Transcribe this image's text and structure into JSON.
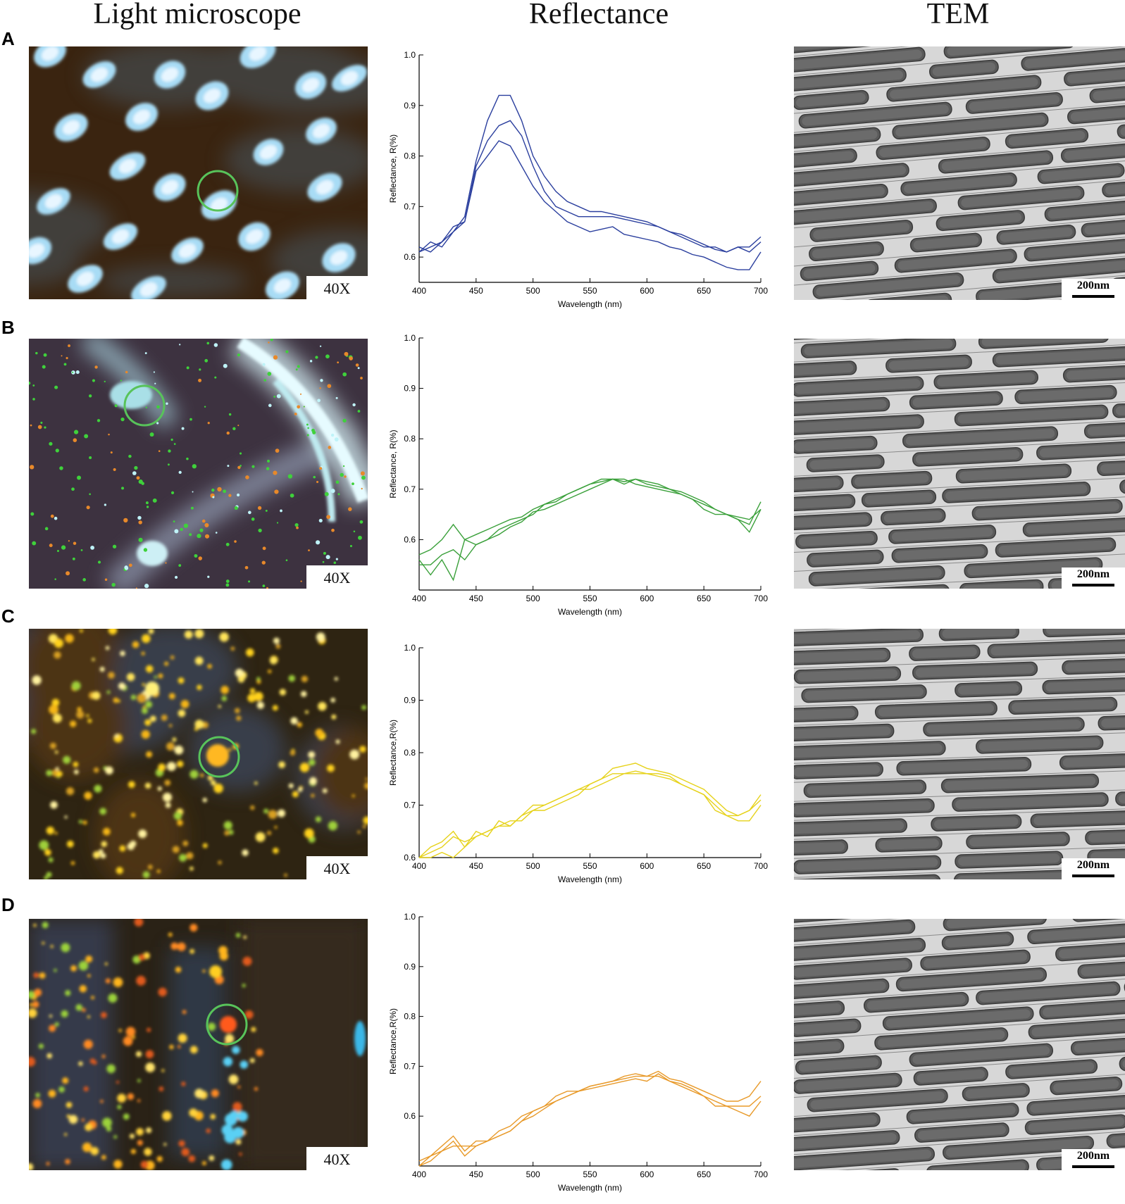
{
  "headers": {
    "light": "Light microscope",
    "reflectance": "Reflectance",
    "tem": "TEM"
  },
  "rows": [
    {
      "letter": "A",
      "magnification": "40X",
      "scale_label": "200nm",
      "micro_palette": "blue-spots",
      "chart": {
        "ylabel": "Reflectance, R(%)",
        "xlabel": "Wavelength (nm)",
        "ymin": 0.55
      }
    },
    {
      "letter": "B",
      "magnification": "40X",
      "scale_label": "200nm",
      "micro_palette": "green-cyan",
      "chart": {
        "ylabel": "Reflectance, R(%)",
        "xlabel": "Wavelength (nm)",
        "ymin": 0.5
      }
    },
    {
      "letter": "C",
      "magnification": "40X",
      "scale_label": "200nm",
      "micro_palette": "yellow",
      "chart": {
        "ylabel": "Reflectance,R(%)",
        "xlabel": "Wavelength (nm)",
        "ymin": 0.6
      }
    },
    {
      "letter": "D",
      "magnification": "40X",
      "scale_label": "200nm",
      "micro_palette": "orange",
      "chart": {
        "ylabel": "Reflectance,R(%)",
        "xlabel": "Wavelength (nm)",
        "ymin": 0.5
      }
    }
  ],
  "chart_data": [
    {
      "type": "line",
      "xlim": [
        400,
        700
      ],
      "ylim": [
        0.55,
        1.0
      ],
      "xticks": [
        "400",
        "450",
        "500",
        "550",
        "600",
        "650",
        "700"
      ],
      "yticks": [
        "0.6",
        "0.7",
        "0.8",
        "0.9",
        "1.0"
      ],
      "color": "#2b3f9e",
      "x": [
        400,
        410,
        420,
        430,
        440,
        450,
        460,
        470,
        480,
        490,
        500,
        510,
        520,
        530,
        540,
        550,
        560,
        570,
        580,
        590,
        600,
        610,
        620,
        630,
        640,
        650,
        660,
        670,
        680,
        690,
        700
      ],
      "series": [
        {
          "values": [
            0.61,
            0.63,
            0.62,
            0.65,
            0.68,
            0.79,
            0.87,
            0.92,
            0.92,
            0.87,
            0.8,
            0.76,
            0.73,
            0.71,
            0.7,
            0.69,
            0.69,
            0.685,
            0.68,
            0.675,
            0.67,
            0.66,
            0.65,
            0.64,
            0.63,
            0.62,
            0.62,
            0.61,
            0.62,
            0.62,
            0.64
          ]
        },
        {
          "values": [
            0.62,
            0.61,
            0.63,
            0.66,
            0.67,
            0.78,
            0.83,
            0.86,
            0.87,
            0.84,
            0.78,
            0.73,
            0.7,
            0.69,
            0.68,
            0.68,
            0.68,
            0.68,
            0.675,
            0.67,
            0.665,
            0.66,
            0.65,
            0.645,
            0.635,
            0.625,
            0.615,
            0.61,
            0.62,
            0.61,
            0.63
          ]
        },
        {
          "values": [
            0.61,
            0.62,
            0.63,
            0.65,
            0.67,
            0.77,
            0.8,
            0.83,
            0.82,
            0.78,
            0.74,
            0.71,
            0.69,
            0.67,
            0.66,
            0.65,
            0.655,
            0.66,
            0.645,
            0.64,
            0.635,
            0.63,
            0.62,
            0.615,
            0.605,
            0.6,
            0.59,
            0.58,
            0.575,
            0.575,
            0.61
          ]
        }
      ]
    },
    {
      "type": "line",
      "xlim": [
        400,
        700
      ],
      "ylim": [
        0.5,
        1.0
      ],
      "xticks": [
        "400",
        "450",
        "500",
        "550",
        "600",
        "650",
        "700"
      ],
      "yticks": [
        "0.6",
        "0.7",
        "0.8",
        "0.9",
        "1.0"
      ],
      "color": "#3aa03a",
      "x": [
        400,
        410,
        420,
        430,
        440,
        450,
        460,
        470,
        480,
        490,
        500,
        510,
        520,
        530,
        540,
        550,
        560,
        570,
        580,
        590,
        600,
        610,
        620,
        630,
        640,
        650,
        660,
        670,
        680,
        690,
        700
      ],
      "series": [
        {
          "values": [
            0.57,
            0.58,
            0.6,
            0.63,
            0.6,
            0.61,
            0.62,
            0.63,
            0.64,
            0.645,
            0.66,
            0.67,
            0.68,
            0.69,
            0.7,
            0.71,
            0.72,
            0.72,
            0.71,
            0.72,
            0.71,
            0.705,
            0.7,
            0.69,
            0.68,
            0.67,
            0.66,
            0.65,
            0.64,
            0.63,
            0.675
          ]
        },
        {
          "values": [
            0.56,
            0.53,
            0.56,
            0.52,
            0.6,
            0.59,
            0.6,
            0.62,
            0.63,
            0.64,
            0.65,
            0.67,
            0.675,
            0.69,
            0.7,
            0.71,
            0.715,
            0.72,
            0.715,
            0.72,
            0.715,
            0.71,
            0.7,
            0.695,
            0.685,
            0.675,
            0.66,
            0.65,
            0.645,
            0.64,
            0.66
          ]
        },
        {
          "values": [
            0.55,
            0.55,
            0.57,
            0.58,
            0.56,
            0.59,
            0.6,
            0.61,
            0.625,
            0.635,
            0.655,
            0.66,
            0.67,
            0.68,
            0.69,
            0.7,
            0.71,
            0.72,
            0.72,
            0.71,
            0.705,
            0.7,
            0.695,
            0.69,
            0.68,
            0.66,
            0.65,
            0.65,
            0.64,
            0.615,
            0.66
          ]
        }
      ]
    },
    {
      "type": "line",
      "xlim": [
        400,
        700
      ],
      "ylim": [
        0.6,
        1.0
      ],
      "xticks": [
        "400",
        "450",
        "500",
        "550",
        "600",
        "650",
        "700"
      ],
      "yticks": [
        "0.6",
        "0.7",
        "0.8",
        "0.9",
        "1.0"
      ],
      "color": "#e6d21a",
      "x": [
        400,
        410,
        420,
        430,
        440,
        450,
        460,
        470,
        480,
        490,
        500,
        510,
        520,
        530,
        540,
        550,
        560,
        570,
        580,
        590,
        600,
        610,
        620,
        630,
        640,
        650,
        660,
        670,
        680,
        690,
        700
      ],
      "series": [
        {
          "values": [
            0.6,
            0.62,
            0.63,
            0.65,
            0.62,
            0.65,
            0.64,
            0.67,
            0.66,
            0.68,
            0.7,
            0.7,
            0.71,
            0.72,
            0.73,
            0.74,
            0.75,
            0.77,
            0.775,
            0.78,
            0.77,
            0.765,
            0.76,
            0.75,
            0.74,
            0.73,
            0.71,
            0.69,
            0.68,
            0.69,
            0.72
          ]
        },
        {
          "values": [
            0.6,
            0.61,
            0.62,
            0.64,
            0.63,
            0.64,
            0.65,
            0.66,
            0.67,
            0.67,
            0.69,
            0.69,
            0.7,
            0.71,
            0.72,
            0.74,
            0.75,
            0.76,
            0.76,
            0.765,
            0.76,
            0.76,
            0.755,
            0.74,
            0.73,
            0.72,
            0.7,
            0.68,
            0.68,
            0.69,
            0.71
          ]
        },
        {
          "values": [
            0.59,
            0.6,
            0.61,
            0.6,
            0.62,
            0.64,
            0.65,
            0.66,
            0.66,
            0.68,
            0.69,
            0.7,
            0.71,
            0.72,
            0.73,
            0.73,
            0.74,
            0.75,
            0.76,
            0.76,
            0.76,
            0.755,
            0.75,
            0.74,
            0.73,
            0.72,
            0.69,
            0.68,
            0.67,
            0.67,
            0.7
          ]
        }
      ]
    },
    {
      "type": "line",
      "xlim": [
        400,
        700
      ],
      "ylim": [
        0.5,
        1.0
      ],
      "xticks": [
        "400",
        "450",
        "500",
        "550",
        "600",
        "650",
        "700"
      ],
      "yticks": [
        "0.6",
        "0.7",
        "0.8",
        "0.9",
        "1.0"
      ],
      "color": "#e89a2a",
      "x": [
        400,
        410,
        420,
        430,
        440,
        450,
        460,
        470,
        480,
        490,
        500,
        510,
        520,
        530,
        540,
        550,
        560,
        570,
        580,
        590,
        600,
        610,
        620,
        630,
        640,
        650,
        660,
        670,
        680,
        690,
        700
      ],
      "series": [
        {
          "values": [
            0.5,
            0.52,
            0.54,
            0.56,
            0.53,
            0.55,
            0.55,
            0.57,
            0.58,
            0.6,
            0.61,
            0.62,
            0.63,
            0.64,
            0.65,
            0.66,
            0.665,
            0.67,
            0.68,
            0.685,
            0.68,
            0.69,
            0.675,
            0.67,
            0.66,
            0.65,
            0.64,
            0.63,
            0.63,
            0.64,
            0.67
          ]
        },
        {
          "values": [
            0.5,
            0.51,
            0.53,
            0.54,
            0.54,
            0.54,
            0.55,
            0.56,
            0.57,
            0.59,
            0.61,
            0.62,
            0.64,
            0.65,
            0.65,
            0.66,
            0.665,
            0.67,
            0.675,
            0.68,
            0.68,
            0.68,
            0.67,
            0.665,
            0.655,
            0.64,
            0.63,
            0.62,
            0.62,
            0.62,
            0.64
          ]
        },
        {
          "values": [
            0.51,
            0.52,
            0.53,
            0.55,
            0.52,
            0.54,
            0.55,
            0.56,
            0.57,
            0.59,
            0.6,
            0.615,
            0.63,
            0.64,
            0.65,
            0.655,
            0.66,
            0.665,
            0.67,
            0.675,
            0.67,
            0.685,
            0.67,
            0.66,
            0.65,
            0.64,
            0.62,
            0.62,
            0.61,
            0.6,
            0.63
          ]
        }
      ]
    }
  ]
}
